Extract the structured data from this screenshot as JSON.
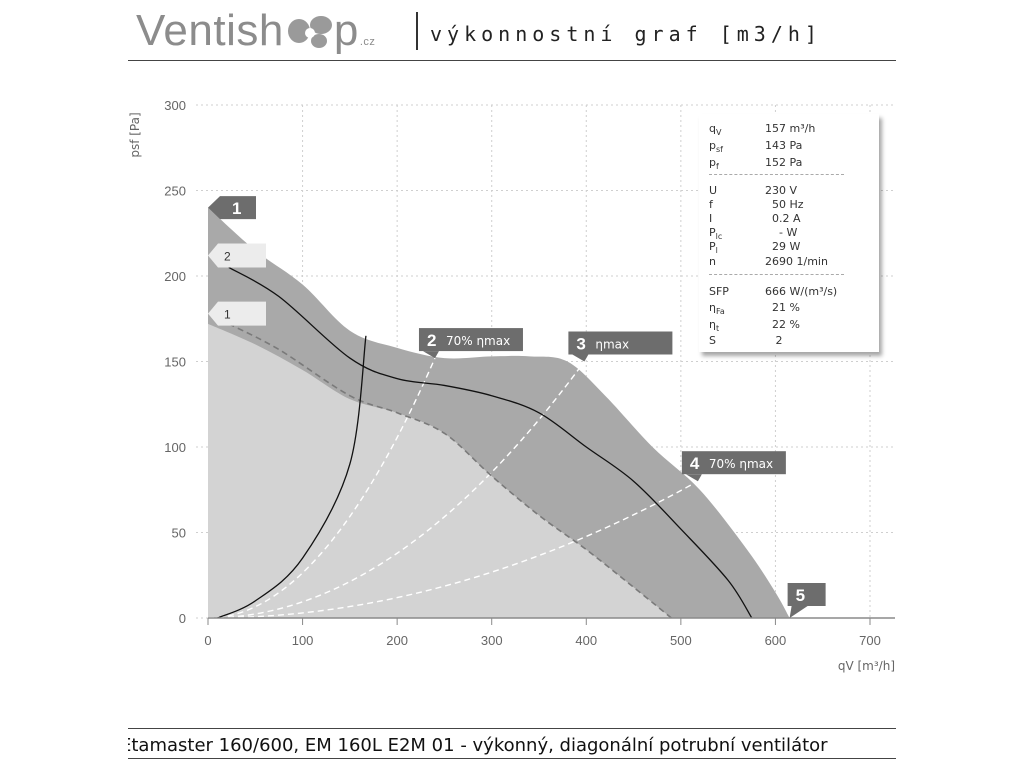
{
  "header": {
    "brand_prefix": "Ventish",
    "brand_suffix": "p",
    "brand_tld": ".cz",
    "subtitle": "výkonnostní graf [m3/h]"
  },
  "footer": {
    "text": "Etamaster 160/600, EM 160L E2M 01 - výkonný, diagonální potrubní ventilátor"
  },
  "info": [
    {
      "sym": "q",
      "sub": "V",
      "value": "157 m³/h"
    },
    {
      "sym": "p",
      "sub": "sf",
      "value": "143 Pa"
    },
    {
      "sym": "p",
      "sub": "f",
      "value": "152 Pa"
    },
    {
      "sym": "U",
      "sub": "",
      "value": "230 V"
    },
    {
      "sym": "f",
      "sub": "",
      "value": "  50 Hz"
    },
    {
      "sym": "I",
      "sub": "",
      "value": "  0.2 A"
    },
    {
      "sym": "P",
      "sub": "lc",
      "value": "    - W"
    },
    {
      "sym": "P",
      "sub": "l",
      "value": "  29 W"
    },
    {
      "sym": "n",
      "sub": "",
      "value": "2690 1/min"
    },
    {
      "sym": "SFP",
      "sub": "",
      "value": "666 W/(m³/s)"
    },
    {
      "sym": "η",
      "sub": "Fa",
      "value": "  21 %"
    },
    {
      "sym": "η",
      "sub": "t",
      "value": "  22 %"
    },
    {
      "sym": "S",
      "sub": "",
      "value": "   2"
    }
  ],
  "colors": {
    "outer_region": "#a9a9a9",
    "inner_region": "#d3d3d3",
    "marker_box": "#6d6d6d",
    "speed_box": "#ececec",
    "grid": "#cfcfcf",
    "axis_text": "#666666"
  },
  "chart_data": {
    "type": "area",
    "xlabel": "qV [m³/h]",
    "ylabel": "psf [Pa]",
    "xlim": [
      0,
      700
    ],
    "ylim": [
      0,
      300
    ],
    "xticks": [
      0,
      100,
      200,
      300,
      400,
      500,
      600,
      700
    ],
    "yticks": [
      0,
      50,
      100,
      150,
      200,
      250,
      300
    ],
    "grid": true,
    "regions": [
      {
        "name": "outer",
        "points": [
          [
            0,
            240
          ],
          [
            50,
            215
          ],
          [
            100,
            195
          ],
          [
            150,
            168
          ],
          [
            200,
            158
          ],
          [
            250,
            152
          ],
          [
            300,
            153
          ],
          [
            340,
            153
          ],
          [
            380,
            150
          ],
          [
            420,
            130
          ],
          [
            470,
            100
          ],
          [
            520,
            75
          ],
          [
            570,
            40
          ],
          [
            600,
            15
          ],
          [
            615,
            0
          ]
        ]
      },
      {
        "name": "inner",
        "points": [
          [
            0,
            172
          ],
          [
            50,
            160
          ],
          [
            100,
            145
          ],
          [
            150,
            128
          ],
          [
            200,
            120
          ],
          [
            250,
            108
          ],
          [
            300,
            83
          ],
          [
            350,
            60
          ],
          [
            400,
            40
          ],
          [
            450,
            18
          ],
          [
            490,
            0
          ]
        ]
      }
    ],
    "series": [
      {
        "name": "2",
        "style": "solid",
        "points": [
          [
            22,
            205
          ],
          [
            75,
            188
          ],
          [
            150,
            152
          ],
          [
            200,
            140
          ],
          [
            250,
            136
          ],
          [
            300,
            130
          ],
          [
            350,
            120
          ],
          [
            400,
            100
          ],
          [
            450,
            80
          ],
          [
            500,
            52
          ],
          [
            550,
            22
          ],
          [
            575,
            0
          ]
        ]
      },
      {
        "name": "1",
        "style": "dashed",
        "points": [
          [
            22,
            172
          ],
          [
            75,
            157
          ],
          [
            150,
            130
          ],
          [
            200,
            120
          ],
          [
            250,
            108
          ],
          [
            300,
            83
          ],
          [
            350,
            60
          ],
          [
            400,
            40
          ],
          [
            450,
            18
          ],
          [
            490,
            0
          ]
        ]
      }
    ],
    "system_curve": {
      "points": [
        [
          10,
          0
        ],
        [
          50,
          10
        ],
        [
          100,
          35
        ],
        [
          150,
          90
        ],
        [
          167,
          165
        ]
      ]
    },
    "efficiency_lines": [
      {
        "label": "70% ηmax",
        "end": [
          240,
          152
        ]
      },
      {
        "label": "ηmax",
        "end": [
          398,
          150
        ]
      },
      {
        "label": "70% ηmax",
        "end": [
          518,
          80
        ]
      }
    ],
    "markers": [
      {
        "num": "1",
        "label": "",
        "x": 0,
        "y": 240
      },
      {
        "num": "2",
        "label": "70% ηmax",
        "x": 240,
        "y": 152
      },
      {
        "num": "3",
        "label": "ηmax",
        "x": 398,
        "y": 150
      },
      {
        "num": "4",
        "label": "70% ηmax",
        "x": 518,
        "y": 80
      },
      {
        "num": "5",
        "label": "",
        "x": 615,
        "y": 0
      }
    ],
    "speed_labels": [
      {
        "label": "2",
        "y": 212
      },
      {
        "label": "1",
        "y": 178
      }
    ]
  }
}
